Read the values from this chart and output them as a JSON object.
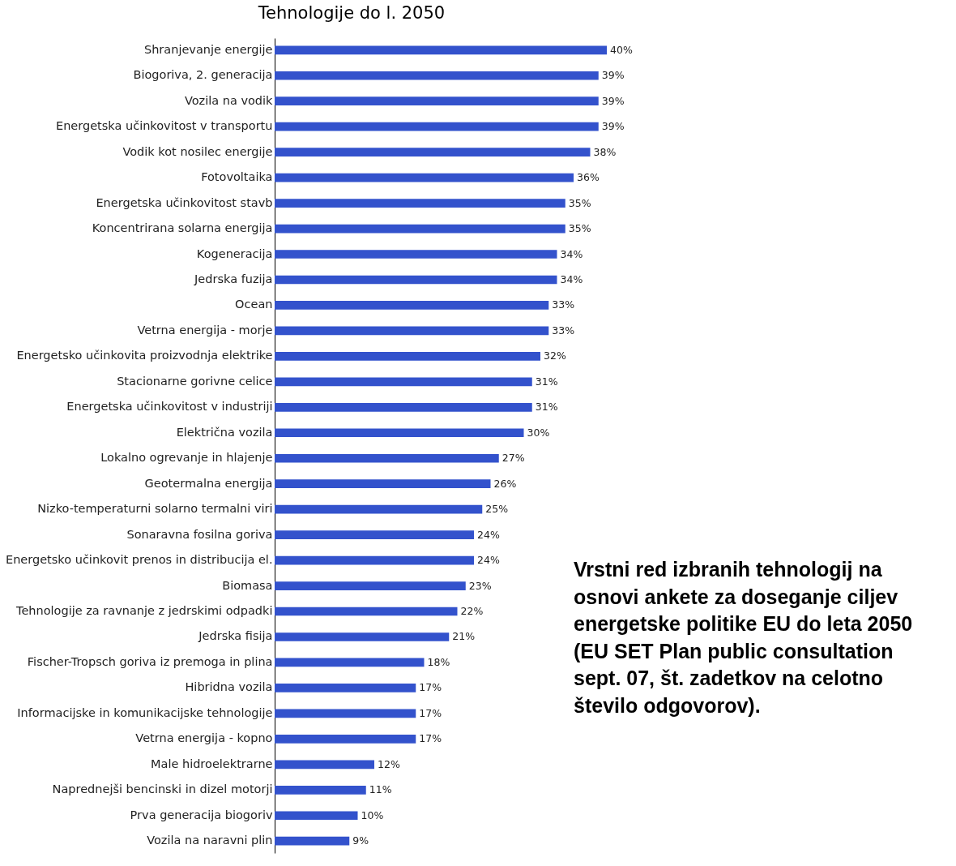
{
  "chart_data": {
    "type": "bar",
    "orientation": "horizontal",
    "title": "Tehnologije do l. 2050",
    "categories": [
      "Shranjevanje energije",
      "Biogoriva, 2. generacija",
      "Vozila na vodik",
      "Energetska učinkovitost v transportu",
      "Vodik kot nosilec energije",
      "Fotovoltaika",
      "Energetska učinkovitost stavb",
      "Koncentrirana solarna energija",
      "Kogeneracija",
      "Jedrska fuzija",
      "Ocean",
      "Vetrna energija - morje",
      "Energetsko učinkovita proizvodnja elektrike",
      "Stacionarne gorivne celice",
      "Energetska učinkovitost v industriji",
      "Električna vozila",
      "Lokalno ogrevanje in hlajenje",
      "Geotermalna energija",
      "Nizko-temperaturni solarno termalni viri",
      "Sonaravna fosilna goriva",
      "Energetsko učinkovit prenos in distribucija el.",
      "Biomasa",
      "Tehnologije za ravnanje z jedrskimi odpadki",
      "Jedrska fisija",
      "Fischer-Tropsch goriva iz premoga in plina",
      "Hibridna vozila",
      "Informacijske in komunikacijske tehnologije",
      "Vetrna energija - kopno",
      "Male hidroelektrarne",
      "Naprednejši bencinski in dizel motorji",
      "Prva generacija biogoriv",
      "Vozila na naravni plin"
    ],
    "values": [
      40,
      39,
      39,
      39,
      38,
      36,
      35,
      35,
      34,
      34,
      33,
      33,
      32,
      31,
      31,
      30,
      27,
      26,
      25,
      24,
      24,
      23,
      22,
      21,
      18,
      17,
      17,
      17,
      12,
      11,
      10,
      9
    ],
    "value_labels": [
      "40%",
      "39%",
      "39%",
      "39%",
      "38%",
      "36%",
      "35%",
      "35%",
      "34%",
      "34%",
      "33%",
      "33%",
      "32%",
      "31%",
      "31%",
      "30%",
      "27%",
      "26%",
      "25%",
      "24%",
      "24%",
      "23%",
      "22%",
      "21%",
      "18%",
      "17%",
      "17%",
      "17%",
      "12%",
      "11%",
      "10%",
      "9%"
    ],
    "color": "#3352cc",
    "annotations": [
      "Vrstni red izbranih tehnologij na osnovi ankete za doseganje ciljev energetske politike EU do leta 2050 (EU SET Plan public consultation sept. 07, št. zadetkov na celotno število odgovorov)."
    ]
  }
}
